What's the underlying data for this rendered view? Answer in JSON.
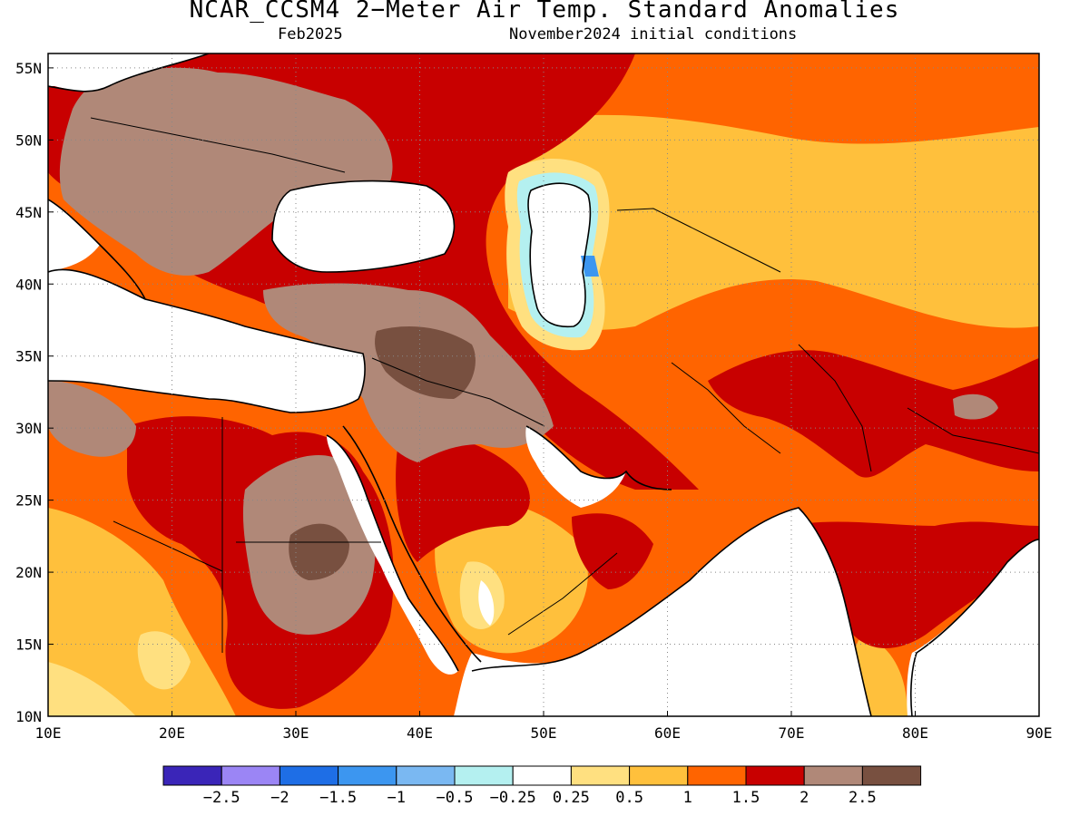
{
  "header": {
    "title": "NCAR_CCSM4 2−Meter Air Temp. Standard Anomalies",
    "valid_month": "Feb2025",
    "initial_conditions": "November2024 initial conditions"
  },
  "map": {
    "lon_range": [
      10,
      90
    ],
    "lat_range": [
      10,
      56
    ],
    "lon_ticks": [
      "10E",
      "20E",
      "30E",
      "40E",
      "50E",
      "60E",
      "70E",
      "80E",
      "90E"
    ],
    "lat_ticks": [
      "10N",
      "15N",
      "20N",
      "25N",
      "30N",
      "35N",
      "40N",
      "45N",
      "50N",
      "55N"
    ],
    "grid": "dotted"
  },
  "colorbar": {
    "colors": [
      "#3a25b8",
      "#9b85f5",
      "#1e6ee6",
      "#3c96f0",
      "#7ab8f2",
      "#b4f0f0",
      "#ffffff",
      "#ffe080",
      "#ffc03c",
      "#ff6400",
      "#c80000",
      "#b08878",
      "#785040"
    ],
    "labels": [
      "−2.5",
      "−2",
      "−1.5",
      "−1",
      "−0.5",
      "−0.25",
      "0.25",
      "0.5",
      "1",
      "1.5",
      "2",
      "2.5"
    ]
  },
  "colors": {
    "anom_0.25": "#ffe080",
    "anom_0.5": "#ffc03c",
    "anom_1": "#ff6400",
    "anom_1.5": "#c80000",
    "anom_2": "#b08878",
    "anom_2.5": "#785040",
    "anom_neg": "#7ab8f2",
    "neutral": "#ffffff"
  }
}
